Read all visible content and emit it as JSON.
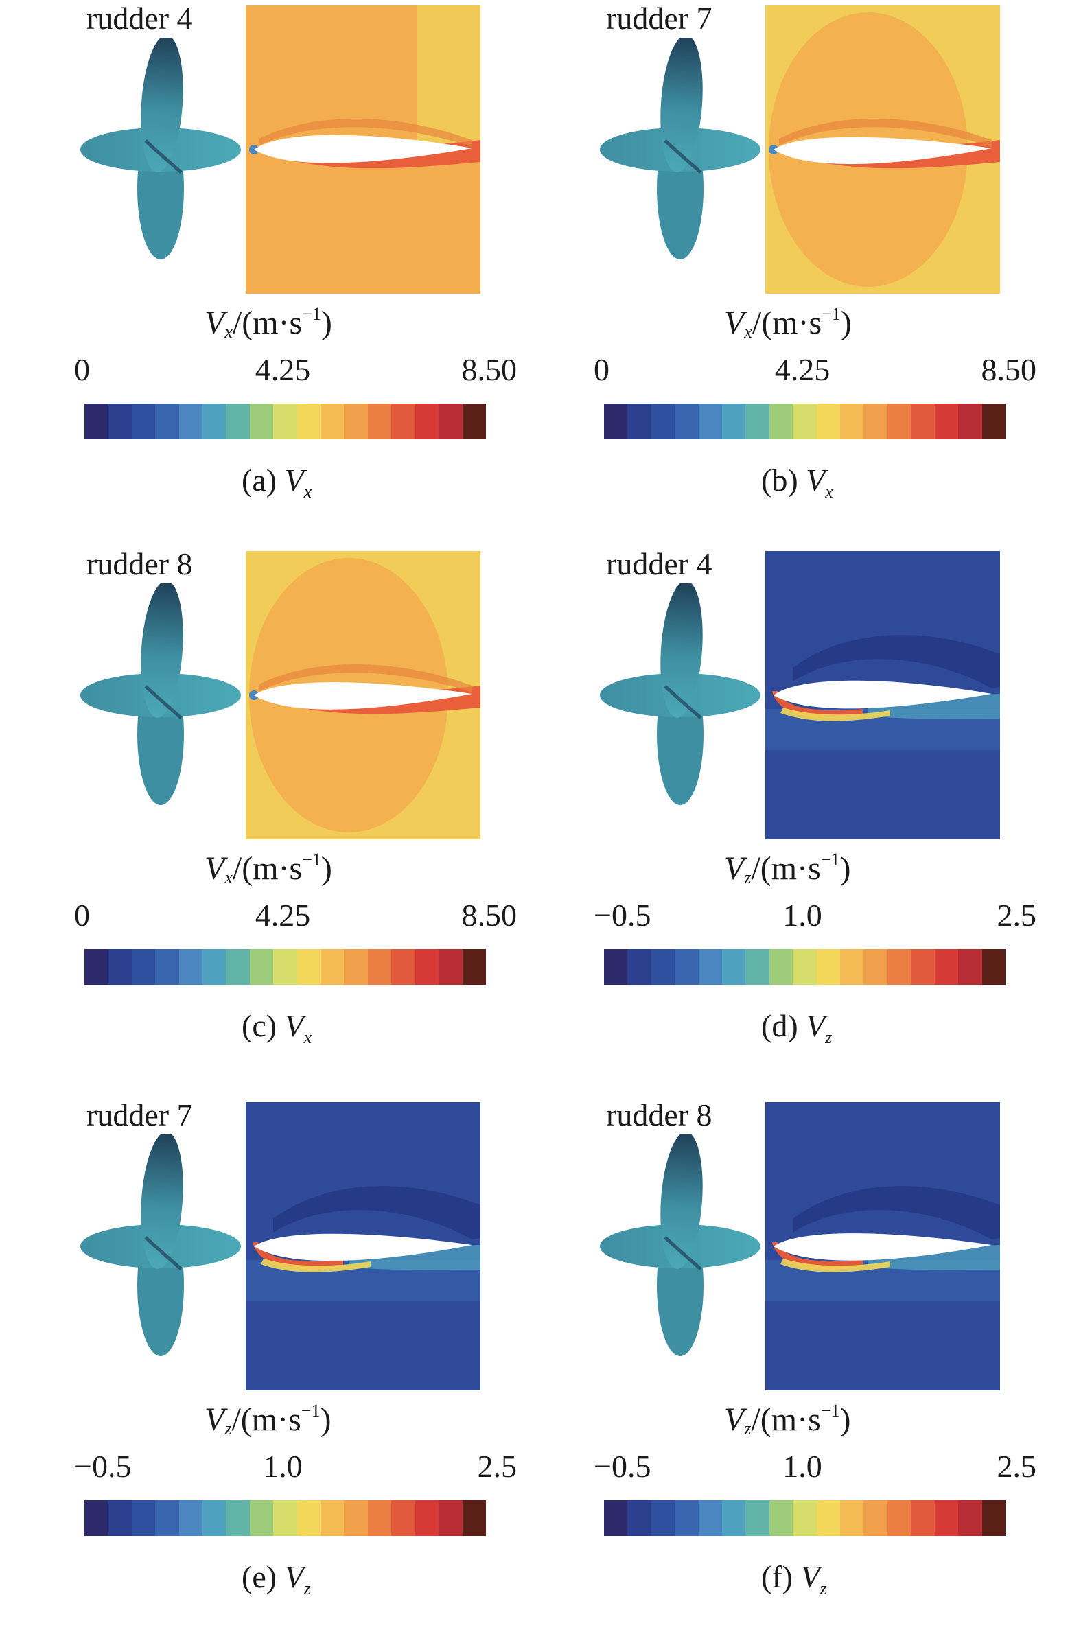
{
  "panels": [
    {
      "rudder_label": "rudder 4",
      "component": "V",
      "component_sub": "x",
      "field": "vx",
      "deflect": 0,
      "unit_suffix": "/(m·s",
      "unit_exp": "−1",
      "unit_close": ")",
      "ticks": [
        "0",
        "4.25",
        "8.50"
      ],
      "caption_prefix": "(a) ",
      "caption_var": "V",
      "caption_sub": "x"
    },
    {
      "rudder_label": "rudder 7",
      "component": "V",
      "component_sub": "x",
      "field": "vx",
      "deflect": 0.45,
      "unit_suffix": "/(m·s",
      "unit_exp": "−1",
      "unit_close": ")",
      "ticks": [
        "0",
        "4.25",
        "8.50"
      ],
      "caption_prefix": "(b) ",
      "caption_var": "V",
      "caption_sub": "x"
    },
    {
      "rudder_label": "rudder 8",
      "component": "V",
      "component_sub": "x",
      "field": "vx",
      "deflect": 0.35,
      "unit_suffix": "/(m·s",
      "unit_exp": "−1",
      "unit_close": ")",
      "ticks": [
        "0",
        "4.25",
        "8.50"
      ],
      "caption_prefix": "(c) ",
      "caption_var": "V",
      "caption_sub": "x"
    },
    {
      "rudder_label": "rudder 4",
      "component": "V",
      "component_sub": "z",
      "field": "vz",
      "deflect": 0,
      "unit_suffix": "/(m·s",
      "unit_exp": "−1",
      "unit_close": ")",
      "ticks": [
        "−0.5",
        "1.0",
        "2.5"
      ],
      "caption_prefix": "(d) ",
      "caption_var": "V",
      "caption_sub": "z"
    },
    {
      "rudder_label": "rudder 7",
      "component": "V",
      "component_sub": "z",
      "field": "vz",
      "deflect": 0.45,
      "unit_suffix": "/(m·s",
      "unit_exp": "−1",
      "unit_close": ")",
      "ticks": [
        "−0.5",
        "1.0",
        "2.5"
      ],
      "caption_prefix": "(e) ",
      "caption_var": "V",
      "caption_sub": "z"
    },
    {
      "rudder_label": "rudder 8",
      "component": "V",
      "component_sub": "z",
      "field": "vz",
      "deflect": 0.35,
      "unit_suffix": "/(m·s",
      "unit_exp": "−1",
      "unit_close": ")",
      "ticks": [
        "−0.5",
        "1.0",
        "2.5"
      ],
      "caption_prefix": "(f) ",
      "caption_var": "V",
      "caption_sub": "z"
    }
  ],
  "colormap": [
    "#2c2a6b",
    "#2b3f8f",
    "#2f4f9f",
    "#3a66b0",
    "#4b86c0",
    "#4fa2bf",
    "#62b4a8",
    "#9ccc7a",
    "#d7dd6a",
    "#f2d75a",
    "#f4bb55",
    "#f1a04b",
    "#ea7e43",
    "#e05a3b",
    "#d53a36",
    "#b72d33",
    "#5a1f16"
  ],
  "colors": {
    "vx_background": "#f3ad4e",
    "vx_background_light": "#f1cc58",
    "vx_wake": "#e85a3a",
    "vz_background": "#2e4a98",
    "vz_dark": "#263a86",
    "rudder_dark": "#1f3f57",
    "rudder_mid": "#3f8fa2",
    "rudder_light": "#4ba9b6"
  }
}
